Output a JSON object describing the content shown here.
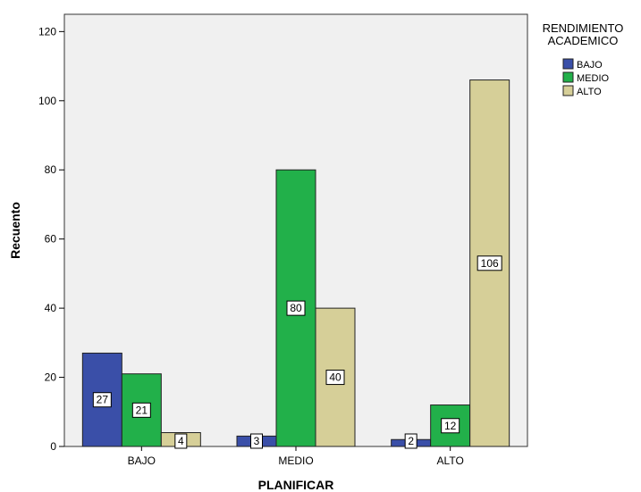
{
  "chart_data": {
    "type": "bar",
    "title": "",
    "xlabel": "PLANIFICAR",
    "ylabel": "Recuento",
    "categories": [
      "BAJO",
      "MEDIO",
      "ALTO"
    ],
    "ylim": [
      0,
      125
    ],
    "yticks": [
      0,
      20,
      40,
      60,
      80,
      100,
      120
    ],
    "grid": false,
    "legend_title": "RENDIMIENTO\nACADEMICO",
    "legend_position": "top-right",
    "series": [
      {
        "name": "BAJO",
        "color": "#3a4fa8",
        "values": [
          27,
          3,
          2
        ]
      },
      {
        "name": "MEDIO",
        "color": "#22b04a",
        "values": [
          21,
          80,
          12
        ]
      },
      {
        "name": "ALTO",
        "color": "#d6cf98",
        "values": [
          4,
          40,
          106
        ]
      }
    ],
    "plot_background": "#f0f0f0"
  }
}
